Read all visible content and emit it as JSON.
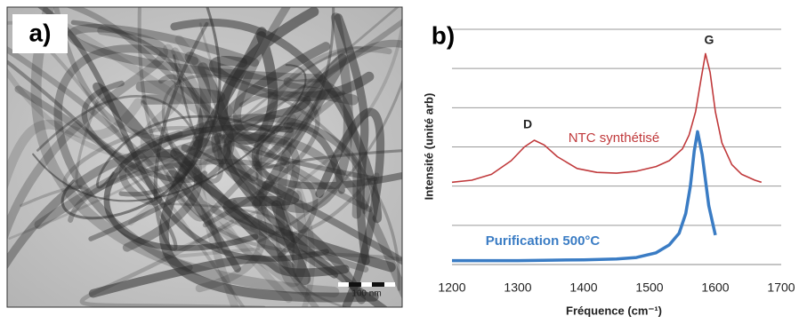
{
  "panel_a": {
    "label": "a)",
    "scale_bar": "100 nm"
  },
  "chart_data": {
    "type": "line",
    "panel_label": "b)",
    "x_label": "Fréquence (cm⁻¹)",
    "y_label": "Intensité (unité arb)",
    "xlim": [
      1200,
      1700
    ],
    "xticks": [
      1200,
      1300,
      1400,
      1500,
      1600,
      1700
    ],
    "ylim": [
      0,
      6
    ],
    "ygrid": [
      0,
      1,
      2,
      3,
      4,
      5,
      6
    ],
    "grid": true,
    "series": [
      {
        "name": "NTC synthétisé",
        "color": "#c0393b",
        "x": [
          1200,
          1230,
          1260,
          1290,
          1310,
          1325,
          1340,
          1360,
          1390,
          1420,
          1450,
          1480,
          1510,
          1530,
          1550,
          1560,
          1570,
          1578,
          1585,
          1592,
          1600,
          1610,
          1625,
          1640,
          1660,
          1670
        ],
        "values": [
          2.1,
          2.15,
          2.3,
          2.65,
          3.0,
          3.17,
          3.05,
          2.75,
          2.45,
          2.35,
          2.33,
          2.38,
          2.5,
          2.65,
          2.95,
          3.3,
          3.9,
          4.7,
          5.38,
          4.9,
          3.9,
          3.1,
          2.55,
          2.3,
          2.15,
          2.1
        ]
      },
      {
        "name": "Purification 500°C",
        "color": "#3a7cc4",
        "x": [
          1200,
          1250,
          1300,
          1350,
          1400,
          1450,
          1480,
          1510,
          1530,
          1545,
          1555,
          1562,
          1568,
          1573,
          1580,
          1590,
          1600
        ],
        "values": [
          0.1,
          0.1,
          0.1,
          0.11,
          0.12,
          0.14,
          0.18,
          0.3,
          0.5,
          0.8,
          1.3,
          2.0,
          2.9,
          3.39,
          2.8,
          1.5,
          0.75
        ]
      }
    ],
    "annotations": [
      "D",
      "G"
    ]
  }
}
